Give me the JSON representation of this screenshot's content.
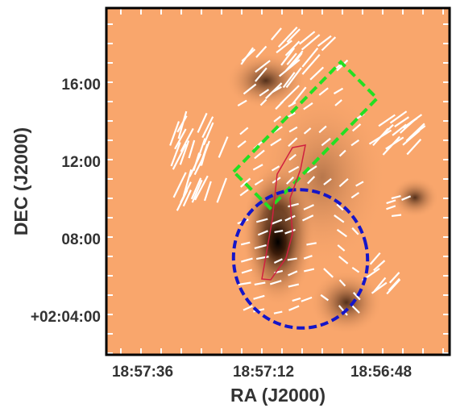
{
  "axes": {
    "x_label": "RA (J2000)",
    "x_ticks": [
      "18:57:36",
      "18:57:12",
      "18:56:48"
    ],
    "y_label": "DEC (J2000)",
    "y_ticks": [
      "16:00",
      "12:00",
      "08:00",
      "+02:04:00"
    ]
  }
}
